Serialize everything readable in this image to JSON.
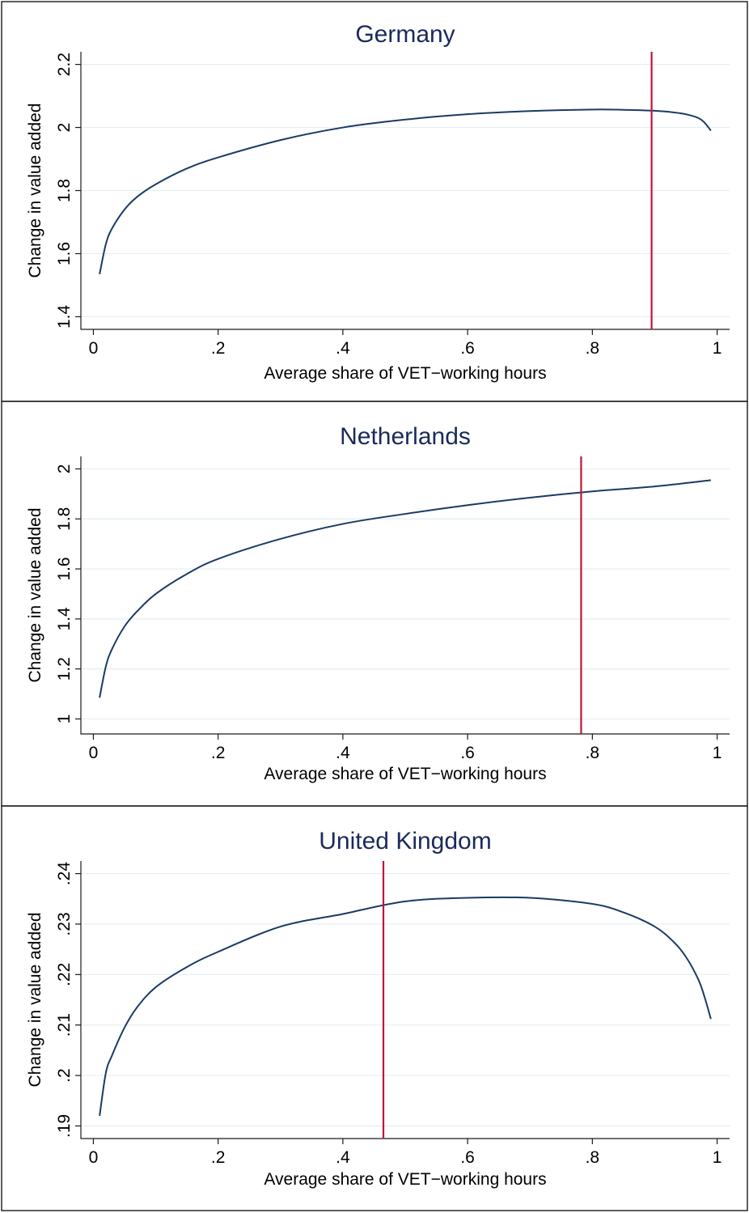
{
  "colors": {
    "title": "#1a2a5a",
    "curve": "#1a3b64",
    "marker_line": "#c0143c",
    "grid": "#e3eef2"
  },
  "chart_data": [
    {
      "type": "line",
      "title": "Germany",
      "xlabel": "Average share of VET−working hours",
      "ylabel": "Change in value added",
      "xlim": [
        -0.02,
        1.02
      ],
      "ylim": [
        1.36,
        2.24
      ],
      "xticks": [
        0,
        0.2,
        0.4,
        0.6,
        0.8,
        1
      ],
      "xtick_labels": [
        "0",
        ".2",
        ".4",
        ".6",
        ".8",
        "1"
      ],
      "yticks": [
        1.4,
        1.6,
        1.8,
        2.0,
        2.2
      ],
      "ytick_labels": [
        "1.4",
        "1.6",
        "1.8",
        "2",
        "2.2"
      ],
      "grid": true,
      "vertical_line_x": 0.895,
      "series": [
        {
          "x": [
            0.01,
            0.02,
            0.03,
            0.05,
            0.07,
            0.1,
            0.15,
            0.2,
            0.3,
            0.4,
            0.5,
            0.6,
            0.7,
            0.8,
            0.85,
            0.9,
            0.93,
            0.95,
            0.97,
            0.98,
            0.99
          ],
          "y": [
            1.535,
            1.63,
            1.68,
            1.74,
            1.78,
            1.82,
            1.87,
            1.905,
            1.96,
            2.0,
            2.025,
            2.042,
            2.052,
            2.057,
            2.056,
            2.053,
            2.048,
            2.042,
            2.03,
            2.015,
            1.99
          ]
        }
      ]
    },
    {
      "type": "line",
      "title": "Netherlands",
      "xlabel": "Average share of VET−working hours",
      "ylabel": "Change in value added",
      "xlim": [
        -0.02,
        1.02
      ],
      "ylim": [
        0.94,
        2.05
      ],
      "xticks": [
        0,
        0.2,
        0.4,
        0.6,
        0.8,
        1
      ],
      "xtick_labels": [
        "0",
        ".2",
        ".4",
        ".6",
        ".8",
        "1"
      ],
      "yticks": [
        1.0,
        1.2,
        1.4,
        1.6,
        1.8,
        2.0
      ],
      "ytick_labels": [
        "1",
        "1.2",
        "1.4",
        "1.6",
        "1.8",
        "2"
      ],
      "grid": true,
      "vertical_line_x": 0.782,
      "series": [
        {
          "x": [
            0.01,
            0.02,
            0.03,
            0.05,
            0.07,
            0.1,
            0.15,
            0.2,
            0.3,
            0.4,
            0.5,
            0.6,
            0.7,
            0.8,
            0.9,
            0.99
          ],
          "y": [
            1.085,
            1.21,
            1.28,
            1.37,
            1.43,
            1.5,
            1.58,
            1.64,
            1.72,
            1.78,
            1.82,
            1.855,
            1.885,
            1.91,
            1.93,
            1.955
          ]
        }
      ]
    },
    {
      "type": "line",
      "title": "United Kingdom",
      "xlabel": "Average share of VET−working hours",
      "ylabel": "Change in value added",
      "xlim": [
        -0.02,
        1.02
      ],
      "ylim": [
        0.1875,
        0.2425
      ],
      "xticks": [
        0,
        0.2,
        0.4,
        0.6,
        0.8,
        1
      ],
      "xtick_labels": [
        "0",
        ".2",
        ".4",
        ".6",
        ".8",
        "1"
      ],
      "yticks": [
        0.19,
        0.2,
        0.21,
        0.22,
        0.23,
        0.24
      ],
      "ytick_labels": [
        ".19",
        ".2",
        ".21",
        ".22",
        ".23",
        ".24"
      ],
      "grid": true,
      "vertical_line_x": 0.465,
      "series": [
        {
          "x": [
            0.01,
            0.02,
            0.03,
            0.05,
            0.07,
            0.1,
            0.15,
            0.2,
            0.3,
            0.4,
            0.5,
            0.6,
            0.7,
            0.8,
            0.85,
            0.9,
            0.93,
            0.95,
            0.97,
            0.98,
            0.99
          ],
          "y": [
            0.192,
            0.2005,
            0.204,
            0.2095,
            0.2135,
            0.2175,
            0.2215,
            0.2245,
            0.2295,
            0.232,
            0.2345,
            0.2352,
            0.2352,
            0.234,
            0.2323,
            0.2295,
            0.2265,
            0.2235,
            0.219,
            0.2155,
            0.2112
          ]
        }
      ]
    }
  ]
}
